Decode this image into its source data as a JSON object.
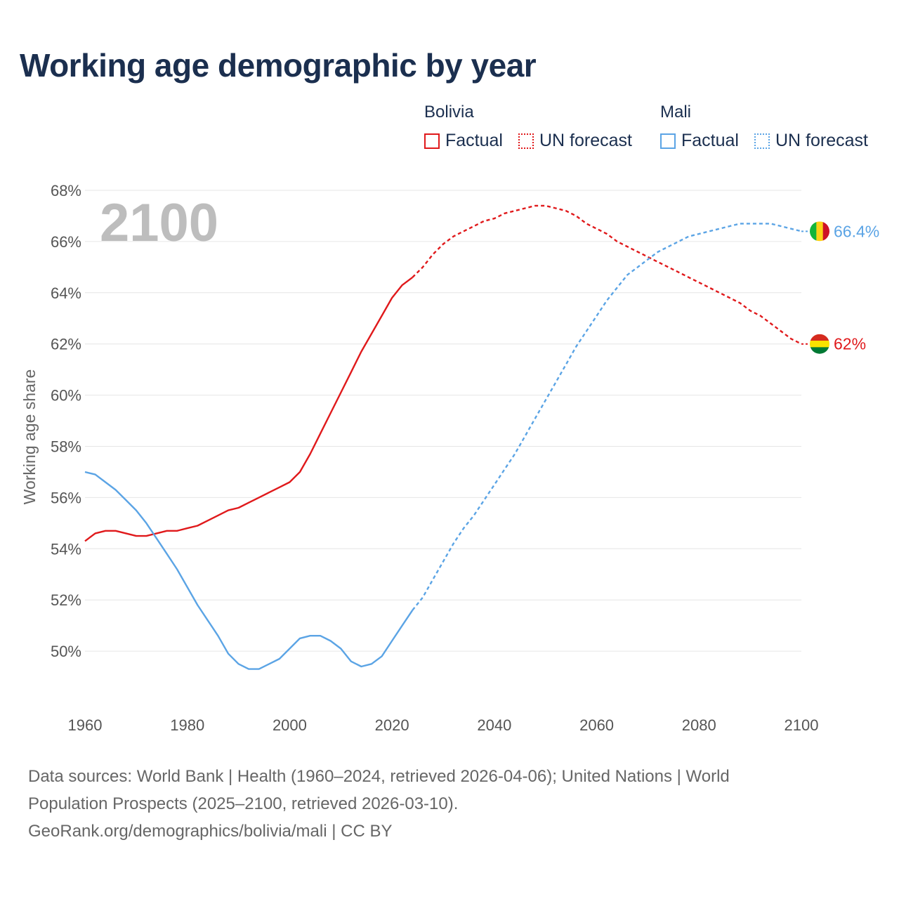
{
  "chart_data": {
    "type": "line",
    "title": "Working age demographic by year",
    "year_label": "2100",
    "ylabel": "Working age share",
    "xlabel": "",
    "xlim": [
      1960,
      2100
    ],
    "ylim": [
      48,
      68
    ],
    "x_ticks": [
      1960,
      1980,
      2000,
      2020,
      2040,
      2060,
      2080,
      2100
    ],
    "x_tick_labels": [
      "1960",
      "1980",
      "2000",
      "2020",
      "2040",
      "2060",
      "2080",
      "2100"
    ],
    "y_ticks": [
      50,
      52,
      54,
      56,
      58,
      60,
      62,
      64,
      66,
      68
    ],
    "y_tick_labels": [
      "50%",
      "52%",
      "54%",
      "56%",
      "58%",
      "60%",
      "62%",
      "64%",
      "66%",
      "68%"
    ],
    "grid": true,
    "legend": {
      "placement": "top-right",
      "groups": [
        {
          "name": "Bolivia",
          "factual_label": "Factual",
          "forecast_label": "UN forecast",
          "color": "#e0191b"
        },
        {
          "name": "Mali",
          "factual_label": "Factual",
          "forecast_label": "UN forecast",
          "color": "#5ba4e5"
        }
      ]
    },
    "series": [
      {
        "name": "Bolivia",
        "color": "#e0191b",
        "end_label": "62%",
        "factual": {
          "x": [
            1960,
            1962,
            1964,
            1966,
            1968,
            1970,
            1972,
            1974,
            1976,
            1978,
            1980,
            1982,
            1984,
            1986,
            1988,
            1990,
            1992,
            1994,
            1996,
            1998,
            2000,
            2002,
            2004,
            2006,
            2008,
            2010,
            2012,
            2014,
            2016,
            2018,
            2020,
            2022,
            2024
          ],
          "y": [
            54.3,
            54.6,
            54.7,
            54.7,
            54.6,
            54.5,
            54.5,
            54.6,
            54.7,
            54.7,
            54.8,
            54.9,
            55.1,
            55.3,
            55.5,
            55.6,
            55.8,
            56.0,
            56.2,
            56.4,
            56.6,
            57.0,
            57.7,
            58.5,
            59.3,
            60.1,
            60.9,
            61.7,
            62.4,
            63.1,
            63.8,
            64.3,
            64.6
          ]
        },
        "forecast": {
          "x": [
            2024,
            2026,
            2028,
            2030,
            2032,
            2034,
            2036,
            2038,
            2040,
            2042,
            2044,
            2046,
            2048,
            2050,
            2052,
            2054,
            2056,
            2058,
            2060,
            2062,
            2064,
            2066,
            2068,
            2070,
            2072,
            2074,
            2076,
            2078,
            2080,
            2082,
            2084,
            2086,
            2088,
            2090,
            2092,
            2094,
            2096,
            2098,
            2100
          ],
          "y": [
            64.6,
            65.0,
            65.5,
            65.9,
            66.2,
            66.4,
            66.6,
            66.8,
            66.9,
            67.1,
            67.2,
            67.3,
            67.4,
            67.4,
            67.3,
            67.2,
            67.0,
            66.7,
            66.5,
            66.3,
            66.0,
            65.8,
            65.6,
            65.4,
            65.2,
            65.0,
            64.8,
            64.6,
            64.4,
            64.2,
            64.0,
            63.8,
            63.6,
            63.3,
            63.1,
            62.8,
            62.5,
            62.2,
            62.0
          ]
        }
      },
      {
        "name": "Mali",
        "color": "#5ba4e5",
        "end_label": "66.4%",
        "factual": {
          "x": [
            1960,
            1962,
            1964,
            1966,
            1968,
            1970,
            1972,
            1974,
            1976,
            1978,
            1980,
            1982,
            1984,
            1986,
            1988,
            1990,
            1992,
            1994,
            1996,
            1998,
            2000,
            2002,
            2004,
            2006,
            2008,
            2010,
            2012,
            2014,
            2016,
            2018,
            2020,
            2022,
            2024
          ],
          "y": [
            57.0,
            56.9,
            56.6,
            56.3,
            55.9,
            55.5,
            55.0,
            54.4,
            53.8,
            53.2,
            52.5,
            51.8,
            51.2,
            50.6,
            49.9,
            49.5,
            49.3,
            49.3,
            49.5,
            49.7,
            50.1,
            50.5,
            50.6,
            50.6,
            50.4,
            50.1,
            49.6,
            49.4,
            49.5,
            49.8,
            50.4,
            51.0,
            51.6
          ]
        },
        "forecast": {
          "x": [
            2024,
            2026,
            2028,
            2030,
            2032,
            2034,
            2036,
            2038,
            2040,
            2042,
            2044,
            2046,
            2048,
            2050,
            2052,
            2054,
            2056,
            2058,
            2060,
            2062,
            2064,
            2066,
            2068,
            2070,
            2072,
            2074,
            2076,
            2078,
            2080,
            2082,
            2084,
            2086,
            2088,
            2090,
            2092,
            2094,
            2096,
            2098,
            2100
          ],
          "y": [
            51.6,
            52.1,
            52.8,
            53.5,
            54.2,
            54.8,
            55.3,
            55.9,
            56.5,
            57.1,
            57.7,
            58.4,
            59.1,
            59.8,
            60.5,
            61.2,
            61.9,
            62.5,
            63.1,
            63.7,
            64.2,
            64.7,
            65.0,
            65.3,
            65.6,
            65.8,
            66.0,
            66.2,
            66.3,
            66.4,
            66.5,
            66.6,
            66.7,
            66.7,
            66.7,
            66.7,
            66.6,
            66.5,
            66.4
          ]
        }
      }
    ]
  },
  "footer": {
    "line1": "Data sources: World Bank | Health (1960–2024, retrieved 2026-04-06); United Nations | World",
    "line2": "Population Prospects (2025–2100, retrieved 2026-03-10).",
    "line3": "GeoRank.org/demographics/bolivia/mali | CC BY"
  },
  "flags": {
    "bolivia": {
      "colors": [
        "#d52b1e",
        "#f9e300",
        "#007934"
      ]
    },
    "mali": {
      "colors": [
        "#14b53a",
        "#fcd116",
        "#ce1126"
      ]
    }
  }
}
